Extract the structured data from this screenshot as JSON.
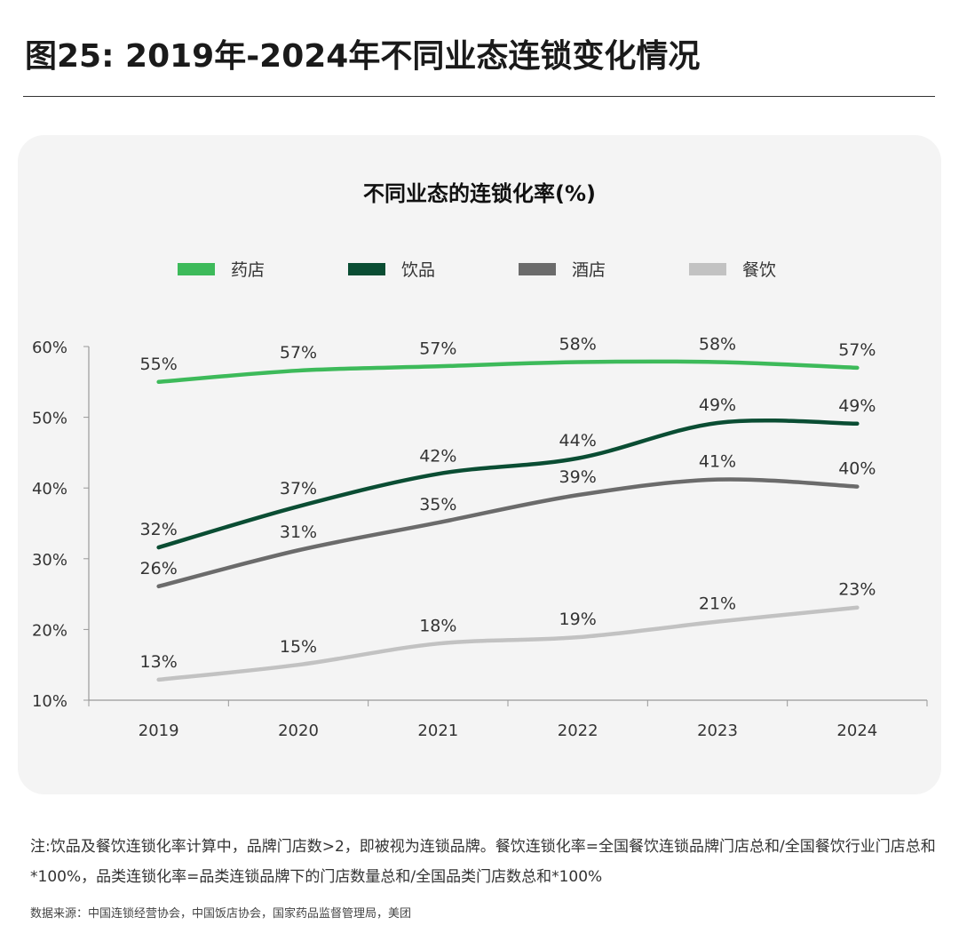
{
  "figure_title": "图25: 2019年-2024年不同业态连锁变化情况",
  "note": "注:饮品及餐饮连锁化率计算中，品牌门店数>2，即被视为连锁品牌。餐饮连锁化率=全国餐饮连锁品牌门店总和/全国餐饮行业门店总和*100%，品类连锁化率=品类连锁品牌下的门店数量总和/全国品类门店数总和*100%",
  "source": "数据来源：中国连锁经营协会，中国饭店协会，国家药品监督管理局，美团",
  "chart_data": {
    "type": "line",
    "title": "不同业态的连锁化率(%)",
    "categories": [
      "2019",
      "2020",
      "2021",
      "2022",
      "2023",
      "2024"
    ],
    "ylim": [
      10,
      60
    ],
    "yticks": [
      "10%",
      "20%",
      "30%",
      "40%",
      "50%",
      "60%"
    ],
    "grid": false,
    "legend_position": "top",
    "series": [
      {
        "name": "药店",
        "color": "#3dba5a",
        "values": [
          55.0,
          56.6,
          57.2,
          57.8,
          57.8,
          57.0
        ],
        "labels": [
          "55%",
          "57%",
          "57%",
          "58%",
          "58%",
          "57%"
        ]
      },
      {
        "name": "饮品",
        "color": "#0a4d33",
        "values": [
          31.6,
          37.4,
          42.0,
          44.2,
          49.2,
          49.1
        ],
        "labels": [
          "32%",
          "37%",
          "42%",
          "44%",
          "49%",
          "49%"
        ]
      },
      {
        "name": "酒店",
        "color": "#6b6b6b",
        "values": [
          26.1,
          31.2,
          35.1,
          39.0,
          41.2,
          40.2
        ],
        "labels": [
          "26%",
          "31%",
          "35%",
          "39%",
          "41%",
          "40%"
        ]
      },
      {
        "name": "餐饮",
        "color": "#c2c2c2",
        "values": [
          12.9,
          15.0,
          18.0,
          18.9,
          21.1,
          23.1
        ],
        "labels": [
          "13%",
          "15%",
          "18%",
          "19%",
          "21%",
          "23%"
        ]
      }
    ]
  }
}
